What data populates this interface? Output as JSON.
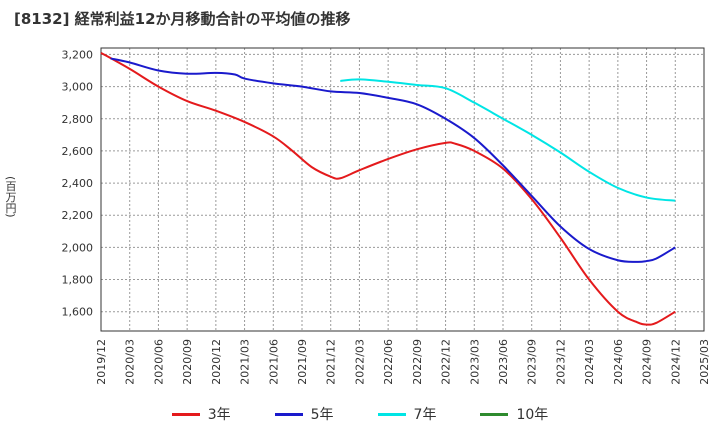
{
  "title": "[8132]  経常利益12か月移動合計の平均値の推移",
  "y_unit": "(百万円)",
  "chart_data": {
    "type": "line",
    "title": "[8132]  経常利益12か月移動合計の平均値の推移",
    "ylabel": "(百万円)",
    "xlabel": "",
    "ylim": [
      1480,
      3240
    ],
    "xlim": [
      "2019-12",
      "2025-03"
    ],
    "grid": true,
    "legend_position": "bottom",
    "x_ticks": [
      "2019/12",
      "2020/03",
      "2020/06",
      "2020/09",
      "2020/12",
      "2021/03",
      "2021/06",
      "2021/09",
      "2021/12",
      "2022/03",
      "2022/06",
      "2022/09",
      "2022/12",
      "2023/03",
      "2023/06",
      "2023/09",
      "2023/12",
      "2024/03",
      "2024/06",
      "2024/09",
      "2024/12",
      "2025/03"
    ],
    "y_ticks": [
      1600,
      1800,
      2000,
      2200,
      2400,
      2600,
      2800,
      3000,
      3200
    ],
    "y_tick_labels": [
      "1,600",
      "1,800",
      "2,000",
      "2,200",
      "2,400",
      "2,600",
      "2,800",
      "3,000",
      "3,200"
    ],
    "series": [
      {
        "name": "3年",
        "color": "#e41a1c",
        "x": [
          "2019-12",
          "2020-03",
          "2020-06",
          "2020-09",
          "2020-12",
          "2021-03",
          "2021-06",
          "2021-08",
          "2021-10",
          "2021-12",
          "2022-01",
          "2022-03",
          "2022-06",
          "2022-09",
          "2022-12",
          "2023-01",
          "2023-03",
          "2023-06",
          "2023-09",
          "2023-12",
          "2024-03",
          "2024-06",
          "2024-08",
          "2024-09",
          "2024-10",
          "2024-12"
        ],
        "values": [
          3210,
          3110,
          3000,
          2910,
          2850,
          2780,
          2690,
          2600,
          2500,
          2440,
          2430,
          2480,
          2550,
          2610,
          2650,
          2645,
          2600,
          2490,
          2300,
          2060,
          1800,
          1600,
          1535,
          1520,
          1530,
          1600
        ]
      },
      {
        "name": "5年",
        "color": "#1a1acc",
        "x": [
          "2020-01",
          "2020-03",
          "2020-06",
          "2020-09",
          "2020-12",
          "2021-02",
          "2021-03",
          "2021-06",
          "2021-09",
          "2021-12",
          "2022-03",
          "2022-06",
          "2022-09",
          "2022-12",
          "2023-03",
          "2023-06",
          "2023-09",
          "2023-12",
          "2024-03",
          "2024-06",
          "2024-08",
          "2024-09",
          "2024-10",
          "2024-12"
        ],
        "values": [
          3175,
          3150,
          3100,
          3080,
          3085,
          3075,
          3050,
          3020,
          3000,
          2970,
          2960,
          2930,
          2890,
          2800,
          2680,
          2510,
          2320,
          2130,
          1990,
          1920,
          1910,
          1915,
          1930,
          2000
        ]
      },
      {
        "name": "7年",
        "color": "#00e5e5",
        "x": [
          "2022-01",
          "2022-03",
          "2022-06",
          "2022-09",
          "2022-12",
          "2023-03",
          "2023-06",
          "2023-09",
          "2023-12",
          "2024-03",
          "2024-06",
          "2024-09",
          "2024-12"
        ],
        "values": [
          3035,
          3045,
          3030,
          3010,
          2990,
          2900,
          2800,
          2700,
          2590,
          2470,
          2370,
          2310,
          2290
        ]
      },
      {
        "name": "10年",
        "color": "#2e8b2e",
        "x": [],
        "values": []
      }
    ]
  }
}
